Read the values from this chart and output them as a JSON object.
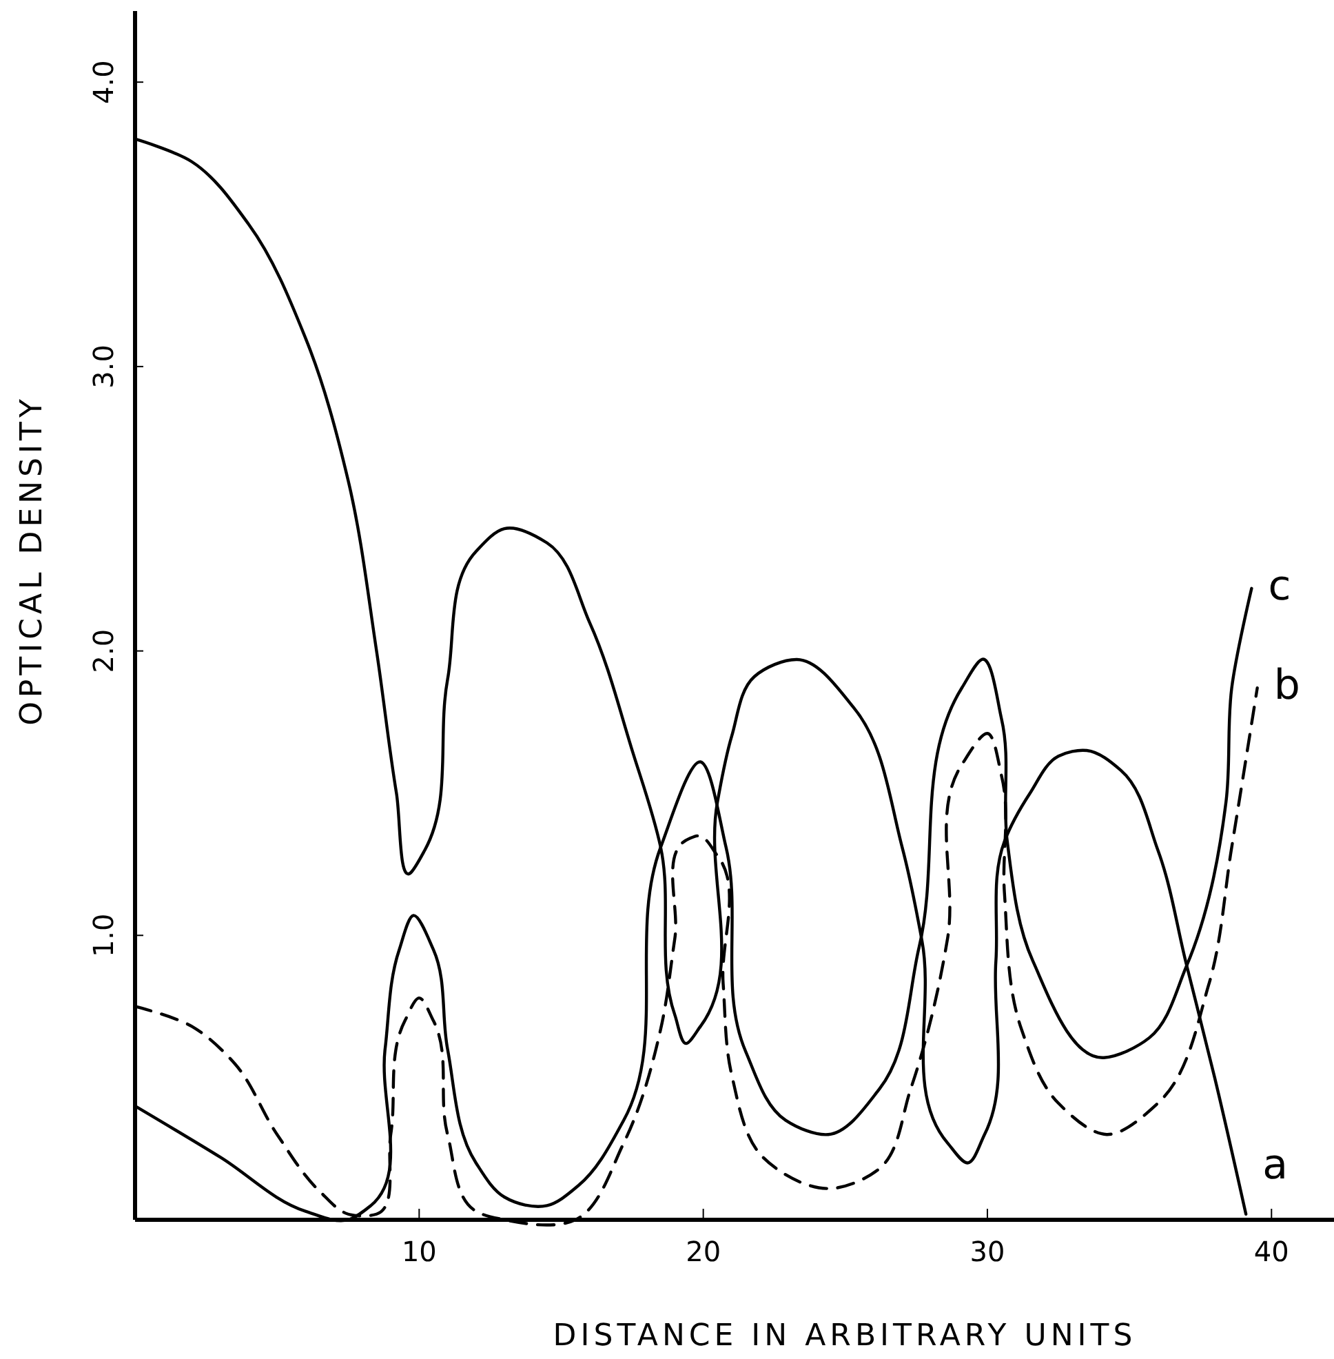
{
  "chart_data": {
    "type": "line",
    "xlabel": "DISTANCE  IN ARBITRARY UNITS",
    "ylabel": "OPTICAL  DENSITY",
    "xlim": [
      0,
      42.2
    ],
    "ylim": [
      0,
      4.25
    ],
    "xticks": [
      10,
      20,
      30,
      40
    ],
    "yticks": [
      {
        "value": 1,
        "label": "1.0"
      },
      {
        "value": 2,
        "label": "2.0"
      },
      {
        "value": 3,
        "label": "3.0"
      },
      {
        "value": 4,
        "label": "4.0"
      }
    ],
    "grid": false,
    "legend": false,
    "marker": "none",
    "series": [
      {
        "name": "a",
        "color": "#000000",
        "line_style": "solid",
        "x": [
          0,
          2,
          4,
          6,
          7.5,
          8.5,
          9.2,
          9.7,
          10.2,
          11,
          12,
          13,
          14.5,
          16,
          17.5,
          18.5,
          19,
          19.4,
          19.9,
          20.5,
          21,
          21.8,
          23.3,
          25.3,
          27,
          27.7,
          28.6,
          29.3,
          29.9,
          30.3,
          30.6,
          31.5,
          32.5,
          33.5,
          34.7,
          36,
          37,
          38,
          39.1
        ],
        "values": [
          3.8,
          3.72,
          3.5,
          3.1,
          2.6,
          2.0,
          1.5,
          1.22,
          1.3,
          1.9,
          2.35,
          2.43,
          2.38,
          2.1,
          1.65,
          1.31,
          0.72,
          0.62,
          0.68,
          1.47,
          1.7,
          1.91,
          1.97,
          1.8,
          1.31,
          0.98,
          0.27,
          0.2,
          0.3,
          0.91,
          1.33,
          1.5,
          1.63,
          1.65,
          1.58,
          1.3,
          0.9,
          0.5,
          0.02
        ]
      },
      {
        "name": "b",
        "color": "#000000",
        "line_style": "dashed",
        "x": [
          0,
          2,
          3.5,
          5,
          6.5,
          7.5,
          8.5,
          9,
          9.5,
          10,
          10.5,
          11,
          12,
          13,
          15.5,
          17.2,
          18.5,
          19,
          19.5,
          19.8,
          20.5,
          20.7,
          21,
          22.1,
          24.5,
          26.2,
          27.3,
          28.6,
          29.1,
          30,
          30.5,
          30.6,
          31.2,
          32.5,
          34.2,
          36,
          37.8,
          38.6,
          39.5
        ],
        "values": [
          0.75,
          0.68,
          0.55,
          0.3,
          0.1,
          0.02,
          0.02,
          0.3,
          0.7,
          0.78,
          0.7,
          0.3,
          0.03,
          0,
          0,
          0.27,
          0.67,
          0.99,
          1.34,
          1.35,
          1.28,
          0.83,
          0.51,
          0.22,
          0.11,
          0.18,
          0.46,
          0.99,
          1.6,
          1.71,
          1.56,
          1.15,
          0.67,
          0.41,
          0.3,
          0.41,
          0.83,
          1.31,
          1.87
        ]
      },
      {
        "name": "c",
        "color": "#000000",
        "line_style": "solid",
        "x": [
          0,
          3,
          6,
          7.5,
          8.3,
          8.8,
          9.3,
          9.8,
          10.5,
          11,
          12,
          13,
          14.5,
          15.6,
          17.2,
          18.5,
          19.9,
          20.8,
          21.5,
          22.9,
          24.4,
          26.2,
          27.6,
          29.1,
          29.8,
          30.5,
          30.7,
          31.6,
          34.1,
          35.7,
          37,
          38.4,
          38.6,
          39.3
        ],
        "values": [
          0.4,
          0.22,
          0.03,
          0,
          0.05,
          0.6,
          0.95,
          1.07,
          0.95,
          0.6,
          0.2,
          0.08,
          0.05,
          0.12,
          0.35,
          1.31,
          1.61,
          1.31,
          0.59,
          0.35,
          0.3,
          0.46,
          0.96,
          1.87,
          1.97,
          1.76,
          1.33,
          0.91,
          0.57,
          0.64,
          0.89,
          1.47,
          1.87,
          2.22
        ]
      }
    ]
  }
}
